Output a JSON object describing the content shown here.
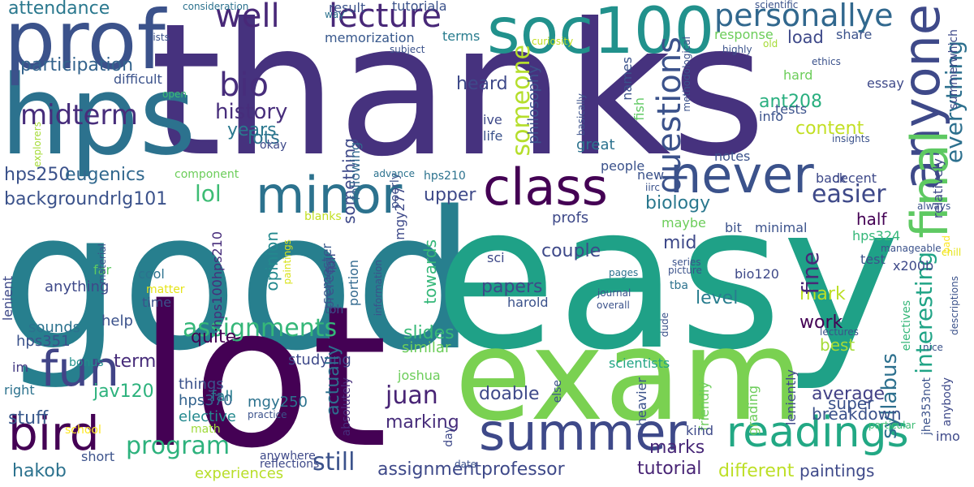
{
  "words": [
    {
      "text": "thanks",
      "color": "#46327e",
      "rotate": 0
    },
    {
      "text": "good",
      "color": "#277f8e",
      "rotate": 0
    },
    {
      "text": "easy",
      "color": "#1fa187",
      "rotate": 0
    },
    {
      "text": "exam",
      "color": "#7ad151",
      "rotate": 0
    },
    {
      "text": "lot",
      "color": "#440154",
      "rotate": 0
    },
    {
      "text": "hps",
      "color": "#2c728e",
      "rotate": 0
    },
    {
      "text": "prof",
      "color": "#3b528b",
      "rotate": 0
    },
    {
      "text": "soc100",
      "color": "#21918c",
      "rotate": 0
    },
    {
      "text": "anyone",
      "color": "#3e4989",
      "rotate": 90
    },
    {
      "text": "never",
      "color": "#3b528b",
      "rotate": 0
    },
    {
      "text": "minor",
      "color": "#2c728e",
      "rotate": 0
    },
    {
      "text": "class",
      "color": "#440154",
      "rotate": 0
    },
    {
      "text": "final",
      "color": "#5ec962",
      "rotate": 90
    },
    {
      "text": "summer",
      "color": "#3e4989",
      "rotate": 0
    },
    {
      "text": "readings",
      "color": "#22a884",
      "rotate": 0
    },
    {
      "text": "bird",
      "color": "#440154",
      "rotate": 0
    },
    {
      "text": "fun",
      "color": "#414487",
      "rotate": 0
    },
    {
      "text": "lecture",
      "color": "#482878",
      "rotate": 0
    },
    {
      "text": "personallye",
      "color": "#31688e",
      "rotate": 0
    },
    {
      "text": "well",
      "color": "#482878",
      "rotate": 0
    },
    {
      "text": "questions",
      "color": "#3b528b",
      "rotate": 90
    },
    {
      "text": "bio",
      "color": "#472d7b",
      "rotate": 0
    },
    {
      "text": "midterm",
      "color": "#472d7b",
      "rotate": 0
    },
    {
      "text": "assignments",
      "color": "#35b779",
      "rotate": 0
    },
    {
      "text": "program",
      "color": "#2db27d",
      "rotate": 0
    },
    {
      "text": "juan",
      "color": "#482475",
      "rotate": 0
    },
    {
      "text": "still",
      "color": "#3b528b",
      "rotate": 0
    },
    {
      "text": "easier",
      "color": "#3e4989",
      "rotate": 0
    },
    {
      "text": "someone",
      "color": "#b5de2b",
      "rotate": 90
    },
    {
      "text": "lol",
      "color": "#3dbc74",
      "rotate": 0
    },
    {
      "text": "history",
      "color": "#472d7b",
      "rotate": 0
    },
    {
      "text": "attendance",
      "color": "#2a788e",
      "rotate": 0
    },
    {
      "text": "participation",
      "color": "#33638d",
      "rotate": 0
    },
    {
      "text": "hps250",
      "color": "#3b528b",
      "rotate": 0
    },
    {
      "text": "eugenics",
      "color": "#31688e",
      "rotate": 0
    },
    {
      "text": "backgroundrlg101",
      "color": "#3b528b",
      "rotate": 0
    },
    {
      "text": "lots",
      "color": "#2c728e",
      "rotate": 0
    },
    {
      "text": "memorization",
      "color": "#38588c",
      "rotate": 0
    },
    {
      "text": "tutoriala",
      "color": "#3b528b",
      "rotate": 0
    },
    {
      "text": "terms",
      "color": "#287c8e",
      "rotate": 0
    },
    {
      "text": "load",
      "color": "#3e4989",
      "rotate": 0
    },
    {
      "text": "share",
      "color": "#3b528b",
      "rotate": 0
    },
    {
      "text": "response",
      "color": "#6ccd5a",
      "rotate": 0
    },
    {
      "text": "years",
      "color": "#2a788e",
      "rotate": 0
    },
    {
      "text": "content",
      "color": "#c2df23",
      "rotate": 0
    },
    {
      "text": "ant208",
      "color": "#29af7f",
      "rotate": 0
    },
    {
      "text": "heard",
      "color": "#3e4989",
      "rotate": 0
    },
    {
      "text": "upper",
      "color": "#3e4989",
      "rotate": 0
    },
    {
      "text": "biology",
      "color": "#2a788e",
      "rotate": 0
    },
    {
      "text": "couple",
      "color": "#3e4989",
      "rotate": 0
    },
    {
      "text": "mid",
      "color": "#3e4989",
      "rotate": 0
    },
    {
      "text": "level",
      "color": "#287d8e",
      "rotate": 0
    },
    {
      "text": "papers",
      "color": "#3e4989",
      "rotate": 0
    },
    {
      "text": "slides",
      "color": "#38b977",
      "rotate": 0
    },
    {
      "text": "quite",
      "color": "#440154",
      "rotate": 0
    },
    {
      "text": "term",
      "color": "#472c7a",
      "rotate": 0
    },
    {
      "text": "work",
      "color": "#440154",
      "rotate": 0
    },
    {
      "text": "mark",
      "color": "#bddf26",
      "rotate": 0
    },
    {
      "text": "average",
      "color": "#424086",
      "rotate": 0
    },
    {
      "text": "syllabus",
      "color": "#2d708e",
      "rotate": 90
    },
    {
      "text": "doable",
      "color": "#3e4989",
      "rotate": 0
    },
    {
      "text": "marking",
      "color": "#472d7b",
      "rotate": 0
    },
    {
      "text": "stuff",
      "color": "#38588c",
      "rotate": 0
    },
    {
      "text": "jav120",
      "color": "#2db27d",
      "rotate": 0
    },
    {
      "text": "hakob",
      "color": "#2c728e",
      "rotate": 0
    },
    {
      "text": "assignmentprofessor",
      "color": "#3e4989",
      "rotate": 0
    },
    {
      "text": "tutorial",
      "color": "#482475",
      "rotate": 0
    },
    {
      "text": "marks",
      "color": "#482878",
      "rotate": 0
    },
    {
      "text": "different",
      "color": "#bddf26",
      "rotate": 0
    },
    {
      "text": "paintings",
      "color": "#3e4989",
      "rotate": 0
    },
    {
      "text": "breakdown",
      "color": "#3b528b",
      "rotate": 0
    },
    {
      "text": "super",
      "color": "#3b528b",
      "rotate": 0
    },
    {
      "text": "best",
      "color": "#a5db36",
      "rotate": 0
    },
    {
      "text": "fine",
      "color": "#482878",
      "rotate": 90
    },
    {
      "text": "interesting",
      "color": "#20a486",
      "rotate": 90
    },
    {
      "text": "everything",
      "color": "#2d708e",
      "rotate": 90
    },
    {
      "text": "sounds",
      "color": "#2c728e",
      "rotate": 0
    },
    {
      "text": "help",
      "color": "#3b528b",
      "rotate": 0
    },
    {
      "text": "hps351",
      "color": "#3b528b",
      "rotate": 0
    },
    {
      "text": "elective",
      "color": "#23898e",
      "rotate": 0
    },
    {
      "text": "studying",
      "color": "#3e4989",
      "rotate": 0
    },
    {
      "text": "similar",
      "color": "#6ccd5a",
      "rotate": 0
    },
    {
      "text": "things",
      "color": "#3b528b",
      "rotate": 0
    },
    {
      "text": "hps370",
      "color": "#33638d",
      "rotate": 0
    },
    {
      "text": "mgy250",
      "color": "#2c728e",
      "rotate": 0
    },
    {
      "text": "fall",
      "color": "#287c8e",
      "rotate": 0
    },
    {
      "text": "math",
      "color": "#9fda3a",
      "rotate": 0
    },
    {
      "text": "school",
      "color": "#fde725",
      "rotate": 0
    },
    {
      "text": "bonus",
      "color": "#21918c",
      "rotate": 0
    },
    {
      "text": "im",
      "color": "#443a83",
      "rotate": 0
    },
    {
      "text": "right",
      "color": "#2c728e",
      "rotate": 0
    },
    {
      "text": "short",
      "color": "#3b528b",
      "rotate": 0
    },
    {
      "text": "experiences",
      "color": "#b8de29",
      "rotate": 0
    },
    {
      "text": "anything",
      "color": "#3e4989",
      "rotate": 0
    },
    {
      "text": "cool",
      "color": "#2c728e",
      "rotate": 0
    },
    {
      "text": "far",
      "color": "#5ec962",
      "rotate": 0
    },
    {
      "text": "time",
      "color": "#3b528b",
      "rotate": 0
    },
    {
      "text": "lenient",
      "color": "#3e4989",
      "rotate": 90
    },
    {
      "text": "matter",
      "color": "#e5e419",
      "rotate": 0
    },
    {
      "text": "hps100hps210",
      "color": "#472d7b",
      "rotate": 90
    },
    {
      "text": "opinion",
      "color": "#23898e",
      "rotate": 90
    },
    {
      "text": "paintings",
      "color": "#d8e219",
      "rotate": 90
    },
    {
      "text": "semester",
      "color": "#38588c",
      "rotate": 90
    },
    {
      "text": "portion",
      "color": "#31688e",
      "rotate": 90
    },
    {
      "text": "information",
      "color": "#3b528b",
      "rotate": 90
    },
    {
      "text": "tbh",
      "color": "#3b528b",
      "rotate": 0
    },
    {
      "text": "actually",
      "color": "#2d708e",
      "rotate": 90
    },
    {
      "text": "absolutely",
      "color": "#472d7b",
      "rotate": 90
    },
    {
      "text": "joshua",
      "color": "#6ccd5a",
      "rotate": 0
    },
    {
      "text": "practice",
      "color": "#3b528b",
      "rotate": 0
    },
    {
      "text": "anywhere",
      "color": "#3e4989",
      "rotate": 0
    },
    {
      "text": "reflections",
      "color": "#3e4989",
      "rotate": 0
    },
    {
      "text": "day",
      "color": "#3e4989",
      "rotate": 90
    },
    {
      "text": "else",
      "color": "#3b528b",
      "rotate": 90
    },
    {
      "text": "sci",
      "color": "#3e4989",
      "rotate": 0
    },
    {
      "text": "harold",
      "color": "#3b528b",
      "rotate": 0
    },
    {
      "text": "profs",
      "color": "#3e4989",
      "rotate": 0
    },
    {
      "text": "towards",
      "color": "#35b779",
      "rotate": 90
    },
    {
      "text": "hps210",
      "color": "#2c728e",
      "rotate": 0
    },
    {
      "text": "prereqs",
      "color": "#3b528b",
      "rotate": 90
    },
    {
      "text": "something",
      "color": "#3e4989",
      "rotate": 90
    },
    {
      "text": "following",
      "color": "#31688e",
      "rotate": 90
    },
    {
      "text": "full",
      "color": "#3e4989",
      "rotate": 90
    },
    {
      "text": "poorly",
      "color": "#3b528b",
      "rotate": 90
    },
    {
      "text": "mgy277",
      "color": "#3e4989",
      "rotate": 90
    },
    {
      "text": "result",
      "color": "#3b528b",
      "rotate": 0
    },
    {
      "text": "subject",
      "color": "#3b528b",
      "rotate": 0
    },
    {
      "text": "consideration",
      "color": "#2c728e",
      "rotate": 0
    },
    {
      "text": "way",
      "color": "#2c728e",
      "rotate": 0
    },
    {
      "text": "lists",
      "color": "#3b528b",
      "rotate": 0
    },
    {
      "text": "difficult",
      "color": "#3b528b",
      "rotate": 0
    },
    {
      "text": "open",
      "color": "#3dbc74",
      "rotate": 0
    },
    {
      "text": "material",
      "color": "#3b528b",
      "rotate": 90
    },
    {
      "text": "explorers",
      "color": "#a5db36",
      "rotate": 90
    },
    {
      "text": "component",
      "color": "#6ccd5a",
      "rotate": 0
    },
    {
      "text": "okay",
      "color": "#3e4989",
      "rotate": 0
    },
    {
      "text": "advance",
      "color": "#2c728e",
      "rotate": 0
    },
    {
      "text": "date",
      "color": "#3b528b",
      "rotate": 0
    },
    {
      "text": "blanks",
      "color": "#c2df23",
      "rotate": 0
    },
    {
      "text": "philosophy",
      "color": "#3b528b",
      "rotate": 90
    },
    {
      "text": "ive",
      "color": "#3e4989",
      "rotate": 0
    },
    {
      "text": "life",
      "color": "#3b528b",
      "rotate": 0
    },
    {
      "text": "names",
      "color": "#3b528b",
      "rotate": 90
    },
    {
      "text": "fish",
      "color": "#5ec962",
      "rotate": 90
    },
    {
      "text": "basically",
      "color": "#3b528b",
      "rotate": 90
    },
    {
      "text": "great",
      "color": "#2c728e",
      "rotate": 0
    },
    {
      "text": "people",
      "color": "#3b528b",
      "rotate": 0
    },
    {
      "text": "new",
      "color": "#3b528b",
      "rotate": 0
    },
    {
      "text": "iirc",
      "color": "#3b528b",
      "rotate": 0
    },
    {
      "text": "maybe",
      "color": "#6ccd5a",
      "rotate": 0
    },
    {
      "text": "bit",
      "color": "#3b528b",
      "rotate": 0
    },
    {
      "text": "minimal",
      "color": "#3b528b",
      "rotate": 0
    },
    {
      "text": "half",
      "color": "#440154",
      "rotate": 0
    },
    {
      "text": "hps324",
      "color": "#35b779",
      "rotate": 0
    },
    {
      "text": "test",
      "color": "#3b528b",
      "rotate": 0
    },
    {
      "text": "x200b",
      "color": "#3e4989",
      "rotate": 0
    },
    {
      "text": "bio120",
      "color": "#3e4989",
      "rotate": 0
    },
    {
      "text": "series",
      "color": "#3b528b",
      "rotate": 0
    },
    {
      "text": "picture",
      "color": "#3b528b",
      "rotate": 0
    },
    {
      "text": "tba",
      "color": "#2c728e",
      "rotate": 0
    },
    {
      "text": "journal",
      "color": "#3b528b",
      "rotate": 0
    },
    {
      "text": "overall",
      "color": "#3b528b",
      "rotate": 0
    },
    {
      "text": "pages",
      "color": "#2c728e",
      "rotate": 0
    },
    {
      "text": "dude",
      "color": "#3b528b",
      "rotate": 90
    },
    {
      "text": "scientists",
      "color": "#21a585",
      "rotate": 0
    },
    {
      "text": "friendly",
      "color": "#6ccd5a",
      "rotate": 90
    },
    {
      "text": "grading",
      "color": "#6ccd5a",
      "rotate": 90
    },
    {
      "text": "leniently",
      "color": "#3e4989",
      "rotate": 90
    },
    {
      "text": "heavier",
      "color": "#3b528b",
      "rotate": 90
    },
    {
      "text": "kind",
      "color": "#3e4989",
      "rotate": 0
    },
    {
      "text": "imo",
      "color": "#3e4989",
      "rotate": 0
    },
    {
      "text": "particular",
      "color": "#3dbc74",
      "rotate": 0
    },
    {
      "text": "jhe353not",
      "color": "#3b528b",
      "rotate": 90
    },
    {
      "text": "anybody",
      "color": "#3e4989",
      "rotate": 90
    },
    {
      "text": "electives",
      "color": "#35b779",
      "rotate": 90
    },
    {
      "text": "nice",
      "color": "#3b528b",
      "rotate": 0
    },
    {
      "text": "descriptions",
      "color": "#3b528b",
      "rotate": 90
    },
    {
      "text": "lectures",
      "color": "#3b528b",
      "rotate": 0
    },
    {
      "text": "manageable",
      "color": "#3b528b",
      "rotate": 0
    },
    {
      "text": "chill",
      "color": "#e5e419",
      "rotate": 0
    },
    {
      "text": "always",
      "color": "#3b528b",
      "rotate": 0
    },
    {
      "text": "bad",
      "color": "#fde725",
      "rotate": 90
    },
    {
      "text": "relatively",
      "color": "#3e4989",
      "rotate": 90
    },
    {
      "text": "decent",
      "color": "#3e4989",
      "rotate": 0
    },
    {
      "text": "back",
      "color": "#3e4989",
      "rotate": 0
    },
    {
      "text": "notes",
      "color": "#3b528b",
      "rotate": 0
    },
    {
      "text": "info",
      "color": "#3b528b",
      "rotate": 0
    },
    {
      "text": "tests",
      "color": "#3b528b",
      "rotate": 0
    },
    {
      "text": "hard",
      "color": "#6ccd5a",
      "rotate": 0
    },
    {
      "text": "insights",
      "color": "#3b528b",
      "rotate": 0
    },
    {
      "text": "essay",
      "color": "#3e4989",
      "rotate": 0
    },
    {
      "text": "ethics",
      "color": "#3b528b",
      "rotate": 0
    },
    {
      "text": "summerwhich",
      "color": "#3e4989",
      "rotate": 90
    },
    {
      "text": "highly",
      "color": "#3b528b",
      "rotate": 0
    },
    {
      "text": "old",
      "color": "#a5db36",
      "rotate": 0
    },
    {
      "text": "methodological",
      "color": "#3b528b",
      "rotate": 90
    },
    {
      "text": "scientific",
      "color": "#3b528b",
      "rotate": 0
    },
    {
      "text": "curiosity",
      "color": "#c2df23",
      "rotate": 0
    }
  ]
}
